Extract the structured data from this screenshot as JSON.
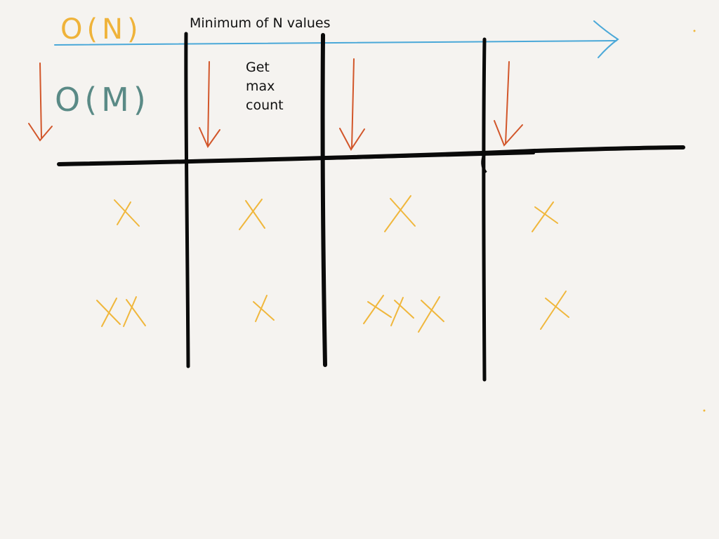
{
  "labels": {
    "top": "Minimum of N values",
    "note": [
      "Get",
      "max",
      "count"
    ]
  },
  "annotations": {
    "horizontal_complexity": "O(N)",
    "vertical_complexity": "O(M)"
  },
  "colors": {
    "background": "#f5f3f0",
    "ink": "#0a0a0a",
    "blue_arrow": "#4aa8d8",
    "orange_arrow": "#d2562a",
    "marks": "#f0b73c",
    "teal_text": "#5a8a86",
    "yellow_text": "#efb33a"
  },
  "grid": {
    "columns": 4,
    "rows": [
      {
        "marks_per_column": [
          1,
          1,
          1,
          1
        ]
      },
      {
        "marks_per_column": [
          2,
          1,
          3,
          1
        ]
      }
    ]
  }
}
